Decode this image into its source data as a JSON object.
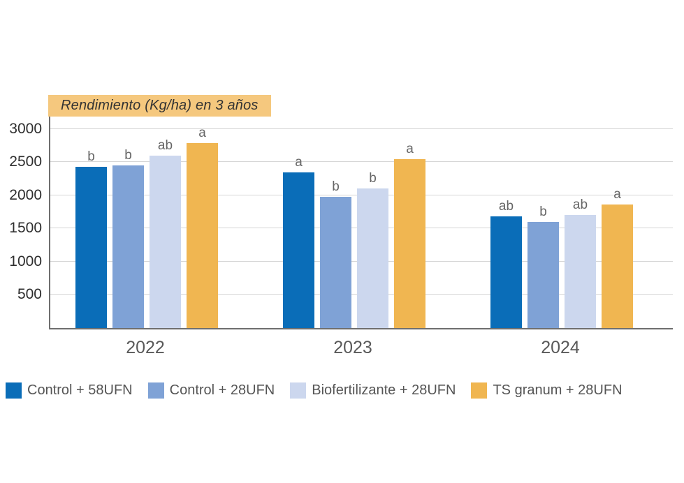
{
  "chart_data": {
    "type": "bar",
    "title": "Rendimiento (Kg/ha) en 3 años",
    "categories": [
      "2022",
      "2023",
      "2024"
    ],
    "series": [
      {
        "name": "Control + 58UFN",
        "color": "#0a6db8",
        "values": [
          2430,
          2350,
          1680
        ],
        "sig_letters": [
          "b",
          "a",
          "ab"
        ]
      },
      {
        "name": "Control + 28UFN",
        "color": "#7fa2d6",
        "values": [
          2450,
          1980,
          1600
        ],
        "sig_letters": [
          "b",
          "b",
          "b"
        ]
      },
      {
        "name": "Biofertilizante + 28UFN",
        "color": "#ccd7ee",
        "values": [
          2600,
          2110,
          1700
        ],
        "sig_letters": [
          "ab",
          "b",
          "ab"
        ]
      },
      {
        "name": "TS granum + 28UFN",
        "color": "#f0b651",
        "values": [
          2790,
          2550,
          1860
        ],
        "sig_letters": [
          "a",
          "a",
          "a"
        ]
      }
    ],
    "y_ticks": [
      500,
      1000,
      1500,
      2000,
      2500,
      3000
    ],
    "ylim": [
      0,
      3200
    ],
    "xlabel": "",
    "ylabel": "",
    "grid": true,
    "legend_position": "bottom"
  },
  "style": {
    "title_bg": "#f5c87e",
    "title_text_color": "#333333",
    "grid_color": "#d6d6d6",
    "axis_color": "#6e6e6e",
    "tick_label_color": "#2e2e2e",
    "category_label_color": "#595959",
    "legend_text_color": "#555555",
    "sig_letter_color": "#666666"
  }
}
